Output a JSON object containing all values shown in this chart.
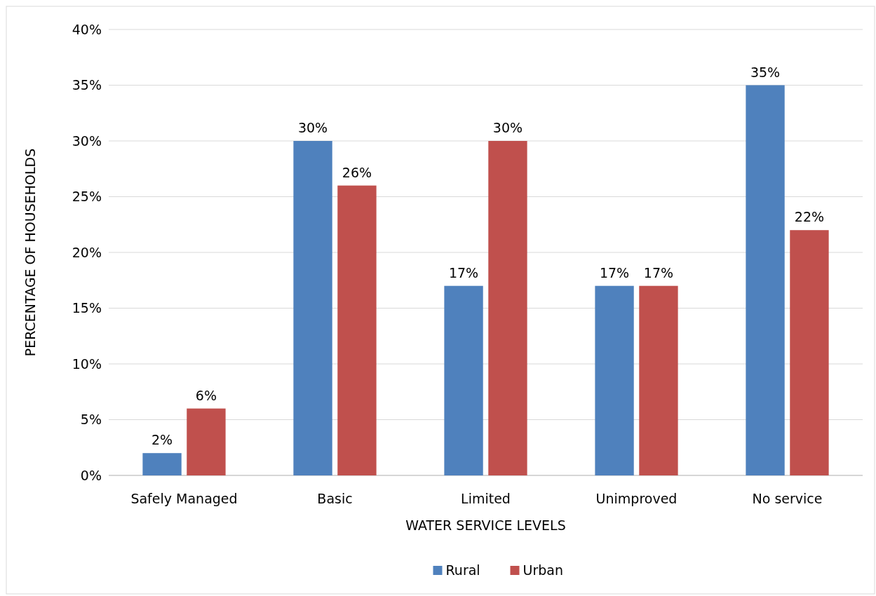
{
  "chart_data": {
    "type": "bar",
    "xlabel": "WATER SERVICE LEVELS",
    "ylabel": "PERCENTAGE OF HOUSEHOLDS",
    "categories": [
      "Safely Managed",
      "Basic",
      "Limited",
      "Unimproved",
      "No service"
    ],
    "series": [
      {
        "name": "Rural",
        "color": "#4f81bd",
        "values": [
          2,
          30,
          17,
          17,
          35
        ],
        "value_labels": [
          "2%",
          "30%",
          "17%",
          "17%",
          "35%"
        ]
      },
      {
        "name": "Urban",
        "color": "#c0504d",
        "values": [
          6,
          26,
          30,
          17,
          22
        ],
        "value_labels": [
          "6%",
          "26%",
          "30%",
          "17%",
          "22%"
        ]
      }
    ],
    "ylim": [
      0,
      40
    ],
    "yticks": [
      {
        "value": 0,
        "label": "0%"
      },
      {
        "value": 5,
        "label": "5%"
      },
      {
        "value": 10,
        "label": "10%"
      },
      {
        "value": 15,
        "label": "15%"
      },
      {
        "value": 20,
        "label": "20%"
      },
      {
        "value": 25,
        "label": "25%"
      },
      {
        "value": 30,
        "label": "30%"
      },
      {
        "value": 35,
        "label": "35%"
      },
      {
        "value": 40,
        "label": "40%"
      }
    ],
    "grid": "y",
    "legend": "bottom"
  }
}
